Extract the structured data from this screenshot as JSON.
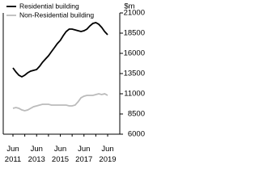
{
  "chart_data": {
    "type": "line",
    "y_unit": "$m",
    "categories": [
      "Jun 2011",
      null,
      null,
      null,
      null,
      null,
      null,
      null,
      "Jun 2013",
      null,
      null,
      null,
      null,
      null,
      null,
      null,
      "Jun 2015",
      null,
      null,
      null,
      null,
      null,
      null,
      null,
      "Jun 2017",
      null,
      null,
      null,
      null,
      null,
      null,
      null,
      "Jun 2019"
    ],
    "series": [
      {
        "name": "Residential building",
        "color": "#000000",
        "values": [
          14200,
          13700,
          13300,
          13100,
          13300,
          13600,
          13800,
          13900,
          14000,
          14400,
          14900,
          15300,
          15700,
          16200,
          16700,
          17200,
          17600,
          18200,
          18700,
          19000,
          19000,
          18900,
          18800,
          18700,
          18800,
          19000,
          19400,
          19700,
          19800,
          19600,
          19200,
          18700,
          18300
        ]
      },
      {
        "name": "Non-Residential building",
        "color": "#bbbbbb",
        "values": [
          9200,
          9300,
          9200,
          9000,
          8900,
          9000,
          9200,
          9400,
          9500,
          9600,
          9700,
          9700,
          9700,
          9600,
          9600,
          9600,
          9600,
          9600,
          9600,
          9500,
          9500,
          9600,
          10000,
          10500,
          10700,
          10800,
          10800,
          10800,
          10900,
          11000,
          10900,
          11000,
          10800
        ]
      }
    ],
    "ylim": [
      6000,
      21000
    ],
    "yticks": [
      6000,
      8500,
      11000,
      13500,
      16000,
      18500,
      21000
    ]
  }
}
